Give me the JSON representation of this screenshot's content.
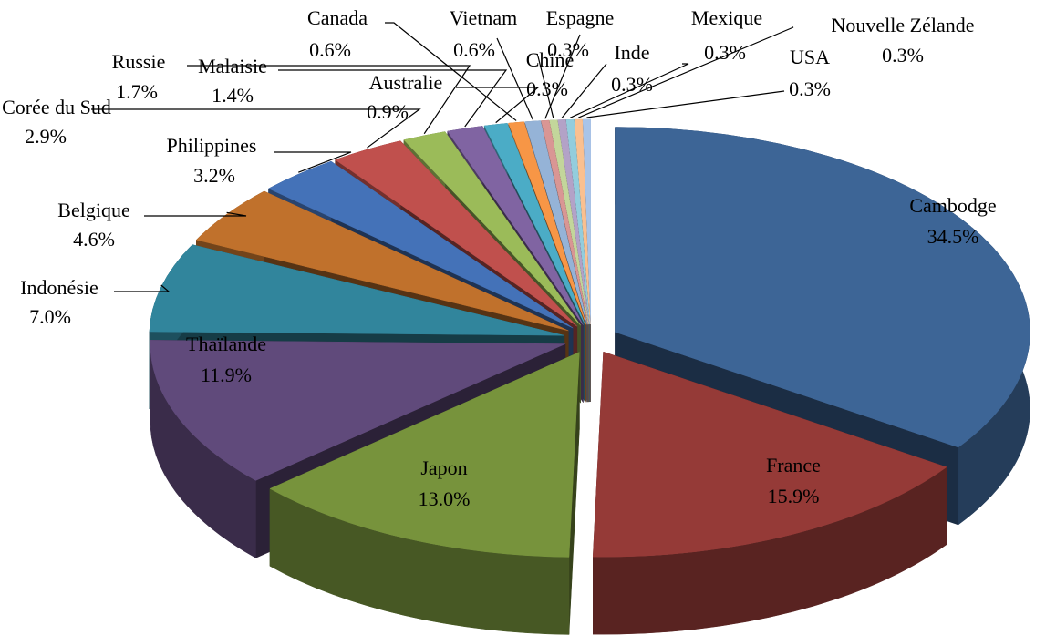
{
  "chart_data": {
    "type": "pie3d",
    "categories": [
      "Cambodge",
      "France",
      "Japon",
      "Thaïlande",
      "Indonésie",
      "Belgique",
      "Philippines",
      "Corée du Sud",
      "Russie",
      "Malaisie",
      "Australie",
      "Canada",
      "Vietnam",
      "Espagne",
      "Chine",
      "Inde",
      "Mexique",
      "Nouvelle Zélande",
      "USA"
    ],
    "values": [
      34.5,
      15.9,
      13.0,
      11.9,
      7.0,
      4.6,
      3.2,
      2.9,
      1.7,
      1.4,
      0.9,
      0.6,
      0.6,
      0.3,
      0.3,
      0.3,
      0.3,
      0.3,
      0.3
    ],
    "value_labels": [
      "34.5%",
      "15.9%",
      "13.0%",
      "11.9%",
      "7.0%",
      "4.6%",
      "3.2%",
      "2.9%",
      "1.7%",
      "1.4%",
      "0.9%",
      "0.6%",
      "0.6%",
      "0.3%",
      "0.3%",
      "0.3%",
      "0.3%",
      "0.3%",
      "0.3%"
    ],
    "colors": [
      "#3d6596",
      "#953a37",
      "#77933c",
      "#604a7b",
      "#31859c",
      "#c0712c",
      "#4472b8",
      "#c0504d",
      "#9bbb59",
      "#8064a2",
      "#4bacc6",
      "#f79646",
      "#95b3d7",
      "#d99694",
      "#c3d69b",
      "#b3a2c7",
      "#93cddd",
      "#fac090",
      "#a9c4e8"
    ]
  }
}
